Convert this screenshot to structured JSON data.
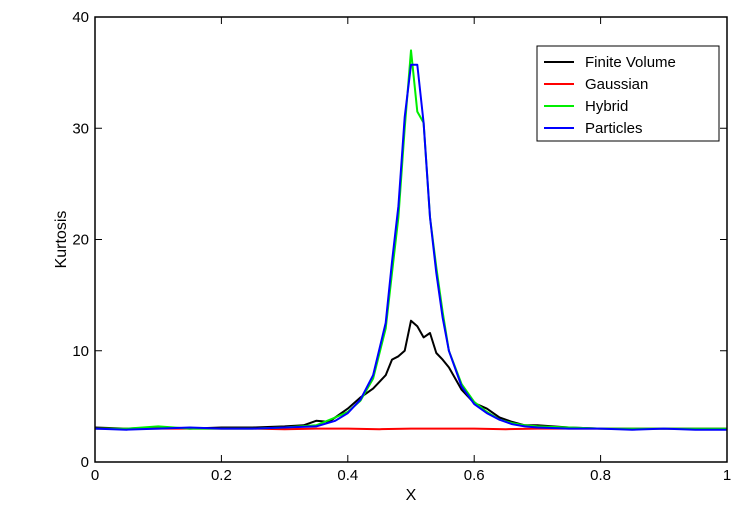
{
  "chart_data": {
    "type": "line",
    "title": "",
    "xlabel": "X",
    "ylabel": "Kurtosis",
    "xlim": [
      0,
      1
    ],
    "ylim": [
      0,
      40
    ],
    "grid": false,
    "legend_position": "top-right",
    "x_ticks": [
      {
        "value": 0,
        "label": "0"
      },
      {
        "value": 0.2,
        "label": "0.2"
      },
      {
        "value": 0.4,
        "label": "0.4"
      },
      {
        "value": 0.6,
        "label": "0.6"
      },
      {
        "value": 0.8,
        "label": "0.8"
      },
      {
        "value": 1,
        "label": "1"
      }
    ],
    "y_ticks": [
      {
        "value": 0,
        "label": "0"
      },
      {
        "value": 10,
        "label": "10"
      },
      {
        "value": 20,
        "label": "20"
      },
      {
        "value": 30,
        "label": "30"
      },
      {
        "value": 40,
        "label": "40"
      }
    ],
    "series": [
      {
        "name": "Finite Volume",
        "color": "#000000",
        "points": [
          [
            0,
            3.1
          ],
          [
            0.05,
            3.0
          ],
          [
            0.1,
            3.1
          ],
          [
            0.15,
            3.0
          ],
          [
            0.2,
            3.1
          ],
          [
            0.25,
            3.1
          ],
          [
            0.3,
            3.2
          ],
          [
            0.33,
            3.3
          ],
          [
            0.35,
            3.7
          ],
          [
            0.37,
            3.6
          ],
          [
            0.38,
            4.0
          ],
          [
            0.4,
            4.8
          ],
          [
            0.42,
            5.8
          ],
          [
            0.44,
            6.6
          ],
          [
            0.46,
            7.8
          ],
          [
            0.47,
            9.2
          ],
          [
            0.48,
            9.5
          ],
          [
            0.49,
            10.0
          ],
          [
            0.5,
            12.7
          ],
          [
            0.51,
            12.2
          ],
          [
            0.52,
            11.2
          ],
          [
            0.53,
            11.6
          ],
          [
            0.54,
            9.8
          ],
          [
            0.55,
            9.2
          ],
          [
            0.56,
            8.5
          ],
          [
            0.58,
            6.5
          ],
          [
            0.6,
            5.3
          ],
          [
            0.62,
            4.8
          ],
          [
            0.64,
            4.0
          ],
          [
            0.66,
            3.6
          ],
          [
            0.68,
            3.3
          ],
          [
            0.7,
            3.3
          ],
          [
            0.75,
            3.1
          ],
          [
            0.8,
            3.0
          ],
          [
            0.85,
            3.0
          ],
          [
            0.9,
            3.0
          ],
          [
            0.95,
            3.0
          ],
          [
            1,
            3.0
          ]
        ]
      },
      {
        "name": "Gaussian",
        "color": "#ff0000",
        "points": [
          [
            0,
            3.0
          ],
          [
            0.05,
            3.0
          ],
          [
            0.1,
            3.0
          ],
          [
            0.15,
            3.0
          ],
          [
            0.2,
            3.0
          ],
          [
            0.25,
            3.0
          ],
          [
            0.3,
            2.95
          ],
          [
            0.35,
            3.0
          ],
          [
            0.4,
            3.0
          ],
          [
            0.45,
            2.95
          ],
          [
            0.5,
            3.0
          ],
          [
            0.55,
            3.0
          ],
          [
            0.6,
            3.0
          ],
          [
            0.65,
            2.95
          ],
          [
            0.7,
            3.0
          ],
          [
            0.75,
            3.0
          ],
          [
            0.8,
            3.0
          ],
          [
            0.85,
            3.0
          ],
          [
            0.9,
            3.0
          ],
          [
            0.95,
            3.0
          ],
          [
            1,
            3.0
          ]
        ]
      },
      {
        "name": "Hybrid",
        "color": "#00ee00",
        "points": [
          [
            0,
            3.0
          ],
          [
            0.05,
            3.0
          ],
          [
            0.1,
            3.2
          ],
          [
            0.15,
            3.0
          ],
          [
            0.2,
            3.0
          ],
          [
            0.25,
            3.0
          ],
          [
            0.3,
            3.1
          ],
          [
            0.35,
            3.3
          ],
          [
            0.38,
            4.0
          ],
          [
            0.4,
            4.5
          ],
          [
            0.42,
            5.5
          ],
          [
            0.44,
            7.5
          ],
          [
            0.46,
            12.0
          ],
          [
            0.47,
            17.0
          ],
          [
            0.48,
            22.0
          ],
          [
            0.49,
            30.0
          ],
          [
            0.5,
            37.0
          ],
          [
            0.51,
            31.5
          ],
          [
            0.52,
            30.5
          ],
          [
            0.53,
            22.0
          ],
          [
            0.54,
            17.5
          ],
          [
            0.55,
            13.5
          ],
          [
            0.56,
            10.0
          ],
          [
            0.58,
            7.0
          ],
          [
            0.6,
            5.4
          ],
          [
            0.62,
            4.5
          ],
          [
            0.64,
            3.8
          ],
          [
            0.66,
            3.5
          ],
          [
            0.68,
            3.3
          ],
          [
            0.7,
            3.2
          ],
          [
            0.75,
            3.1
          ],
          [
            0.8,
            3.0
          ],
          [
            0.85,
            3.0
          ],
          [
            0.9,
            3.0
          ],
          [
            0.95,
            3.0
          ],
          [
            1,
            3.0
          ]
        ]
      },
      {
        "name": "Particles",
        "color": "#0000ff",
        "points": [
          [
            0,
            3.0
          ],
          [
            0.05,
            2.9
          ],
          [
            0.1,
            3.0
          ],
          [
            0.15,
            3.1
          ],
          [
            0.2,
            3.0
          ],
          [
            0.25,
            3.0
          ],
          [
            0.3,
            3.1
          ],
          [
            0.35,
            3.2
          ],
          [
            0.38,
            3.7
          ],
          [
            0.4,
            4.4
          ],
          [
            0.42,
            5.6
          ],
          [
            0.44,
            7.8
          ],
          [
            0.46,
            12.5
          ],
          [
            0.47,
            18.0
          ],
          [
            0.48,
            23.0
          ],
          [
            0.49,
            31.0
          ],
          [
            0.5,
            35.7
          ],
          [
            0.51,
            35.7
          ],
          [
            0.52,
            30.5
          ],
          [
            0.53,
            22.0
          ],
          [
            0.54,
            17.0
          ],
          [
            0.55,
            13.0
          ],
          [
            0.56,
            10.0
          ],
          [
            0.58,
            6.8
          ],
          [
            0.6,
            5.2
          ],
          [
            0.62,
            4.4
          ],
          [
            0.64,
            3.8
          ],
          [
            0.66,
            3.4
          ],
          [
            0.68,
            3.2
          ],
          [
            0.7,
            3.1
          ],
          [
            0.75,
            3.0
          ],
          [
            0.8,
            3.0
          ],
          [
            0.85,
            2.9
          ],
          [
            0.9,
            3.0
          ],
          [
            0.95,
            2.9
          ],
          [
            1,
            2.9
          ]
        ]
      }
    ]
  }
}
